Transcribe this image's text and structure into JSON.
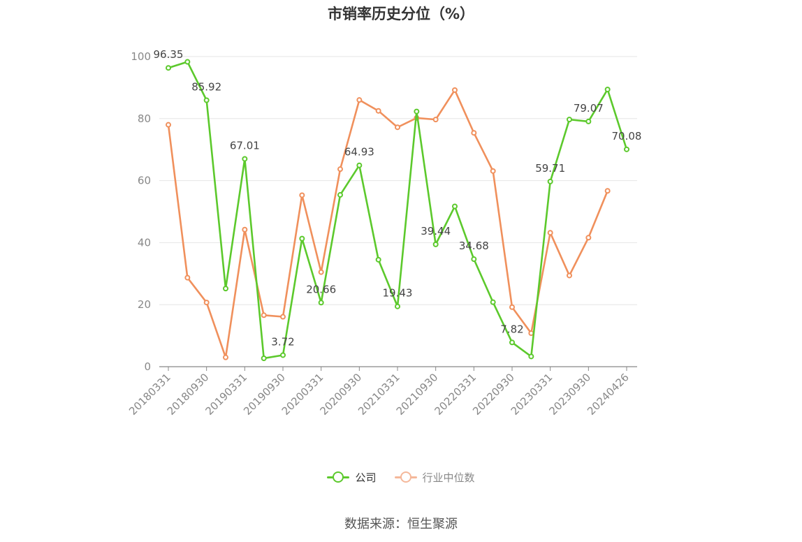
{
  "title": "市销率历史分位（%）",
  "source": "数据来源：恒生聚源",
  "colors": {
    "company": "#5cc92c",
    "industry": "#f0905c",
    "industry_legend": "#f5b89a",
    "grid": "#e6e6e6",
    "axis": "#888888"
  },
  "chart_data": {
    "type": "line",
    "title": "市销率历史分位（%）",
    "xlabel": "",
    "ylabel": "",
    "ylim": [
      0,
      100
    ],
    "yticks": [
      0,
      20,
      40,
      60,
      80,
      100
    ],
    "grid": true,
    "legend_position": "bottom",
    "x": [
      "20180331",
      "20180630",
      "20180930",
      "20181231",
      "20190331",
      "20190630",
      "20190930",
      "20191231",
      "20200331",
      "20200630",
      "20200930",
      "20201231",
      "20210331",
      "20210630",
      "20210930",
      "20211231",
      "20220331",
      "20220630",
      "20220930",
      "20221231",
      "20230331",
      "20230630",
      "20230930",
      "20231231",
      "20240426"
    ],
    "xtick_labels": [
      "20180331",
      "20180930",
      "20190331",
      "20190930",
      "20200331",
      "20200930",
      "20210331",
      "20210930",
      "20220331",
      "20220930",
      "20230331",
      "20230930",
      "20240426"
    ],
    "series": [
      {
        "name": "公司",
        "values": [
          96.35,
          98.3,
          85.92,
          25.2,
          67.01,
          2.7,
          3.72,
          41.3,
          20.66,
          55.4,
          64.93,
          34.5,
          19.43,
          82.3,
          39.44,
          51.7,
          34.68,
          20.8,
          7.82,
          3.3,
          59.71,
          79.7,
          79.07,
          89.4,
          70.08
        ],
        "labels": {
          "0": "96.35",
          "2": "85.92",
          "4": "67.01",
          "6": "3.72",
          "8": "20.66",
          "10": "64.93",
          "12": "19.43",
          "14": "39.44",
          "16": "34.68",
          "18": "7.82",
          "20": "59.71",
          "22": "79.07",
          "24": "70.08"
        }
      },
      {
        "name": "行业中位数",
        "values": [
          78.0,
          28.7,
          20.7,
          3.0,
          44.2,
          16.6,
          16.1,
          55.3,
          30.5,
          63.7,
          86.0,
          82.5,
          77.2,
          80.2,
          79.7,
          89.2,
          75.4,
          63.1,
          19.2,
          10.8,
          43.2,
          29.4,
          41.6,
          56.7,
          null
        ]
      }
    ]
  }
}
